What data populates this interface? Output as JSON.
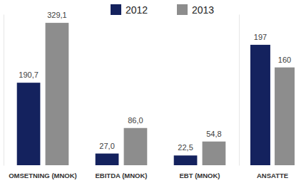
{
  "chart_data": [
    {
      "type": "bar",
      "categories": [
        "OMSETNING (MNOK)",
        "EBITDA (MNOK)",
        "EBT (MNOK)"
      ],
      "series": [
        {
          "name": "2012",
          "color": "#14225e",
          "values": [
            190.7,
            27.0,
            22.5
          ],
          "value_labels": [
            "190,7",
            "27,0",
            "22,5"
          ]
        },
        {
          "name": "2013",
          "color": "#8d8d8d",
          "values": [
            329.1,
            86.0,
            54.8
          ],
          "value_labels": [
            "329,1",
            "86,0",
            "54,8"
          ]
        }
      ],
      "ylim": [
        0,
        349
      ],
      "data_labels": true,
      "tick_labels": "x",
      "legend": "top"
    },
    {
      "type": "bar",
      "categories": [
        "ANSATTE"
      ],
      "series": [
        {
          "color": "#14225e",
          "values": [
            197
          ]
        },
        {
          "color": "#8d8d8d",
          "values": [
            160
          ]
        }
      ],
      "ylim": [
        0,
        247
      ],
      "data_labels": true,
      "tick_labels": "x"
    }
  ]
}
